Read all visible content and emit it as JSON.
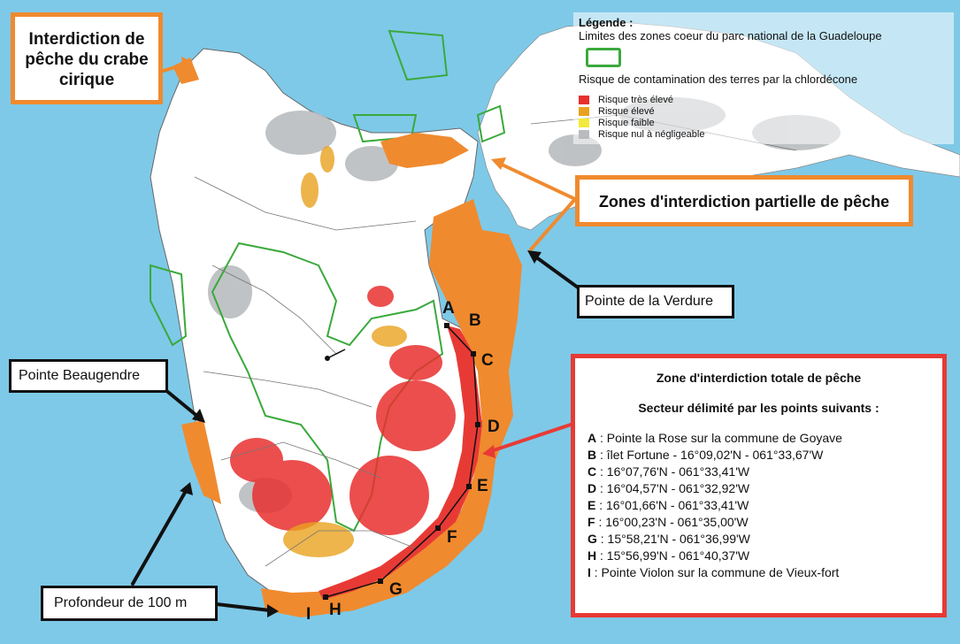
{
  "legend": {
    "title": "Légende :",
    "park_limits": "Limites des zones coeur du parc national de la Guadeloupe",
    "risk_title": "Risque de contamination des terres par la chlordécone",
    "items": [
      {
        "label": "Risque très élevé",
        "color": "#e8302f"
      },
      {
        "label": "Risque élevé",
        "color": "#e8a21f"
      },
      {
        "label": "Risque faible",
        "color": "#f3e93a"
      },
      {
        "label": "Risque nul à négligeable",
        "color": "#b9bcbf"
      }
    ],
    "park_color": "#3aa93c"
  },
  "callouts": {
    "crabe": "Interdiction de pêche du crabe cirique",
    "partielle": "Zones d'interdiction partielle de pêche",
    "verdure": "Pointe de la Verdure",
    "beaugendre": "Pointe Beaugendre",
    "profondeur": "Profondeur de 100 m"
  },
  "points": [
    "A",
    "B",
    "C",
    "D",
    "E",
    "F",
    "G",
    "H",
    "I"
  ],
  "zone_totale": {
    "title": "Zone d'interdiction totale de pêche",
    "subtitle": "Secteur délimité par les points suivants :",
    "lines": [
      {
        "k": "A",
        "v": " : Pointe la Rose sur la commune de Goyave"
      },
      {
        "k": "B",
        "v": " : îlet Fortune - 16°09,02'N - 061°33,67'W"
      },
      {
        "k": "C",
        "v": " : 16°07,76'N - 061°33,41'W"
      },
      {
        "k": "D",
        "v": " : 16°04,57'N - 061°32,92'W"
      },
      {
        "k": "E",
        "v": " : 16°01,66'N - 061°33,41'W"
      },
      {
        "k": "F",
        "v": " : 16°00,23'N - 061°35,00'W"
      },
      {
        "k": "G",
        "v": " : 15°58,21'N - 061°36,99'W"
      },
      {
        "k": "H",
        "v": " : 15°56,99'N - 061°40,37'W"
      },
      {
        "k": "I",
        "v": " : Pointe Violon sur la commune de Vieux-fort"
      }
    ]
  },
  "colors": {
    "sea": "#7ec9e8",
    "orange": "#f08a2e",
    "red": "#e83a35",
    "land": "#ffffff"
  }
}
